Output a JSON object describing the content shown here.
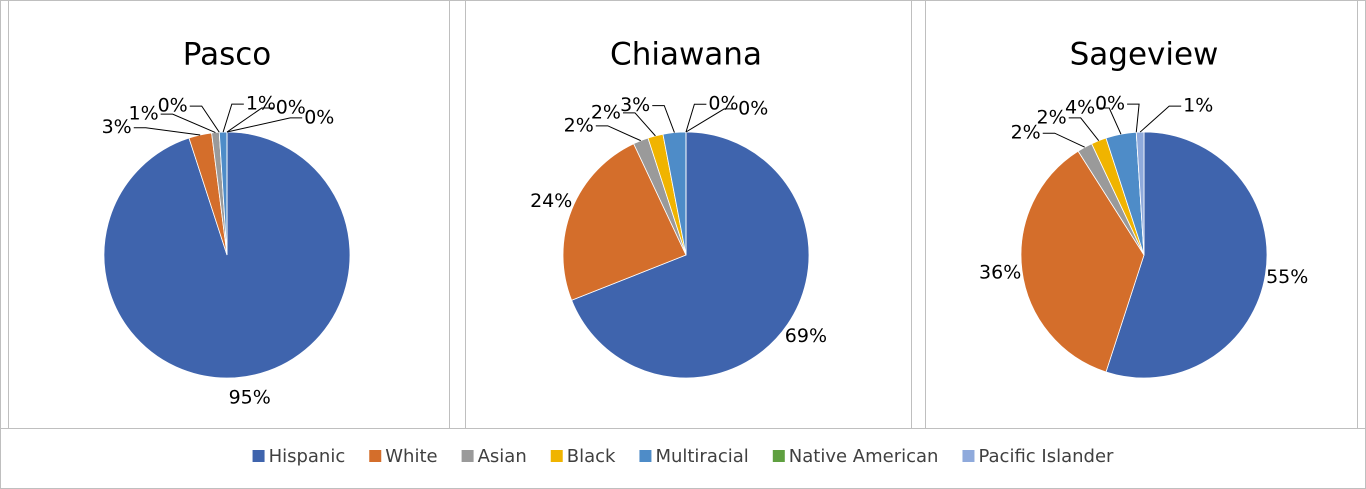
{
  "chart_data": [
    {
      "type": "pie",
      "title": "Pasco",
      "categories": [
        "Hispanic",
        "White",
        "Asian",
        "Black",
        "Multiracial",
        "Native American",
        "Pacific Islander"
      ],
      "values": [
        95,
        3,
        1,
        0,
        1,
        0,
        0
      ],
      "value_labels": [
        "95%",
        "3%",
        "1%",
        "0%",
        "1%",
        "0%",
        "0%"
      ],
      "colors": [
        "#3F64AD",
        "#D46E2B",
        "#9A9A9A",
        "#F0B400",
        "#4E8CC8",
        "#5FA040",
        "#8FAADC"
      ],
      "legend": "bottom"
    },
    {
      "type": "pie",
      "title": "Chiawana",
      "categories": [
        "Hispanic",
        "White",
        "Asian",
        "Black",
        "Multiracial",
        "Native American",
        "Pacific Islander"
      ],
      "values": [
        69,
        24,
        2,
        2,
        3,
        0,
        0
      ],
      "value_labels": [
        "69%",
        "24%",
        "2%",
        "2%",
        "3%",
        "0%",
        "0%"
      ],
      "colors": [
        "#3F64AD",
        "#D46E2B",
        "#9A9A9A",
        "#F0B400",
        "#4E8CC8",
        "#5FA040",
        "#8FAADC"
      ],
      "legend": "bottom"
    },
    {
      "type": "pie",
      "title": "Sageview",
      "categories": [
        "Hispanic",
        "White",
        "Asian",
        "Black",
        "Multiracial",
        "Native American",
        "Pacific Islander"
      ],
      "values": [
        55,
        36,
        2,
        2,
        4,
        0,
        1
      ],
      "value_labels": [
        "55%",
        "36%",
        "2%",
        "2%",
        "4%",
        "0%",
        "1%"
      ],
      "colors": [
        "#3F64AD",
        "#D46E2B",
        "#9A9A9A",
        "#F0B400",
        "#4E8CC8",
        "#5FA040",
        "#8FAADC"
      ],
      "legend": "bottom"
    }
  ]
}
